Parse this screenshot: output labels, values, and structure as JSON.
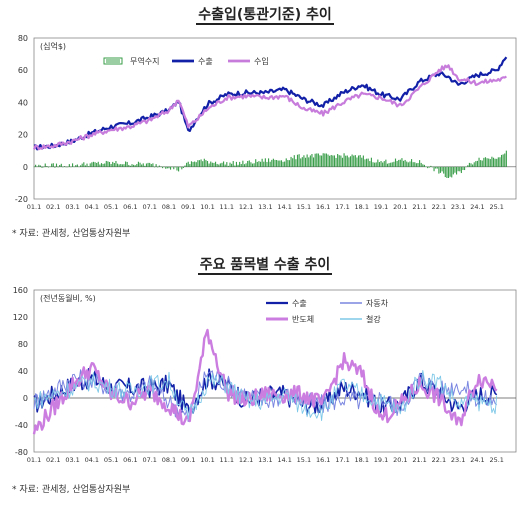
{
  "source_note": "* 자료: 관세청, 산업통상자원부",
  "chart_data": [
    {
      "type": "line",
      "title": "수출입(통관기준) 추이",
      "unit_label": "(십억$)",
      "ylim": [
        -20,
        80
      ],
      "yticks": [
        "80",
        "60",
        "40",
        "20",
        "0",
        "-20"
      ],
      "xticks": [
        "01.1",
        "02.1",
        "03.1",
        "04.1",
        "05.1",
        "06.1",
        "07.1",
        "08.1",
        "09.1",
        "10.1",
        "11.1",
        "12.1",
        "13.1",
        "14.1",
        "15.1",
        "16.1",
        "17.1",
        "18.1",
        "19.1",
        "20.1",
        "21.1",
        "22.1",
        "23.1",
        "24.1",
        "25.1"
      ],
      "legend": [
        "무역수지",
        "수출",
        "수입"
      ],
      "colors": {
        "balance": "#3a9e4a",
        "export": "#1220a8",
        "import": "#c77cdc"
      },
      "x": [
        "01.1",
        "02.1",
        "03.1",
        "04.1",
        "05.1",
        "06.1",
        "07.1",
        "08.1",
        "08.7",
        "09.1",
        "09.7",
        "10.1",
        "11.1",
        "12.1",
        "13.1",
        "14.1",
        "15.1",
        "16.1",
        "17.1",
        "18.1",
        "19.1",
        "20.1",
        "21.1",
        "22.1",
        "22.7",
        "23.1",
        "24.1",
        "25.1",
        "25.7"
      ],
      "series": [
        {
          "name": "수출",
          "values": [
            12,
            13,
            16,
            21,
            25,
            27,
            31,
            35,
            41,
            22,
            31,
            39,
            45,
            46,
            46,
            48,
            42,
            38,
            46,
            51,
            45,
            42,
            53,
            58,
            56,
            51,
            57,
            60,
            69
          ]
        },
        {
          "name": "수입",
          "values": [
            12,
            13,
            16,
            20,
            23,
            25,
            29,
            35,
            42,
            25,
            30,
            36,
            43,
            44,
            43,
            44,
            36,
            33,
            40,
            45,
            43,
            38,
            49,
            60,
            63,
            55,
            52,
            54,
            55
          ]
        },
        {
          "name": "무역수지",
          "values": [
            0.5,
            0.8,
            1,
            2,
            2.5,
            2,
            1.5,
            0,
            -2,
            2,
            4,
            3.5,
            2,
            2.5,
            4,
            4.5,
            7,
            7,
            7,
            6,
            3,
            4,
            3,
            -3,
            -7,
            -4,
            5,
            6,
            10
          ]
        }
      ]
    },
    {
      "type": "line",
      "title": "주요 품목별 수출 추이",
      "unit_label": "(전년동월비, %)",
      "ylim": [
        -80,
        160
      ],
      "yticks": [
        "160",
        "120",
        "80",
        "40",
        "0",
        "-40",
        "-80"
      ],
      "xticks": [
        "01.1",
        "02.1",
        "03.1",
        "04.1",
        "05.1",
        "06.1",
        "07.1",
        "08.1",
        "09.1",
        "10.1",
        "11.1",
        "12.1",
        "13.1",
        "14.1",
        "15.1",
        "16.1",
        "17.1",
        "18.1",
        "19.1",
        "20.1",
        "21.1",
        "22.1",
        "23.1",
        "24.1",
        "25.1"
      ],
      "legend": [
        "수출",
        "자동차",
        "반도체",
        "철강"
      ],
      "colors": {
        "export": "#1220a8",
        "auto": "#7b86e0",
        "semi": "#cc7ee0",
        "steel": "#7ec8e8"
      },
      "x": [
        "01.1",
        "02.1",
        "03.1",
        "04.1",
        "05.1",
        "06.1",
        "07.1",
        "08.1",
        "09.1",
        "10.1",
        "11.1",
        "12.1",
        "13.1",
        "14.1",
        "15.1",
        "16.1",
        "17.1",
        "18.1",
        "19.1",
        "20.1",
        "21.1",
        "22.1",
        "23.1",
        "24.1",
        "25.1"
      ],
      "series": [
        {
          "name": "수출",
          "values": [
            -10,
            5,
            20,
            30,
            15,
            15,
            15,
            20,
            -20,
            30,
            20,
            -5,
            5,
            5,
            -10,
            -10,
            15,
            10,
            -15,
            -10,
            25,
            10,
            -15,
            5,
            5
          ]
        },
        {
          "name": "자동차",
          "values": [
            -5,
            10,
            30,
            25,
            15,
            5,
            20,
            -5,
            -30,
            40,
            20,
            5,
            -5,
            5,
            -5,
            -10,
            0,
            -5,
            0,
            -15,
            30,
            10,
            20,
            0,
            -5
          ]
        },
        {
          "name": "반도체",
          "values": [
            -50,
            -15,
            20,
            45,
            5,
            -5,
            10,
            -10,
            -40,
            100,
            10,
            -5,
            5,
            5,
            5,
            -10,
            55,
            35,
            -30,
            -10,
            20,
            0,
            -40,
            30,
            20
          ]
        },
        {
          "name": "철강",
          "values": [
            -5,
            5,
            15,
            25,
            15,
            10,
            20,
            25,
            -30,
            25,
            20,
            -5,
            -5,
            5,
            -15,
            -20,
            20,
            5,
            -5,
            -20,
            30,
            25,
            -10,
            -5,
            -10
          ]
        }
      ]
    }
  ]
}
